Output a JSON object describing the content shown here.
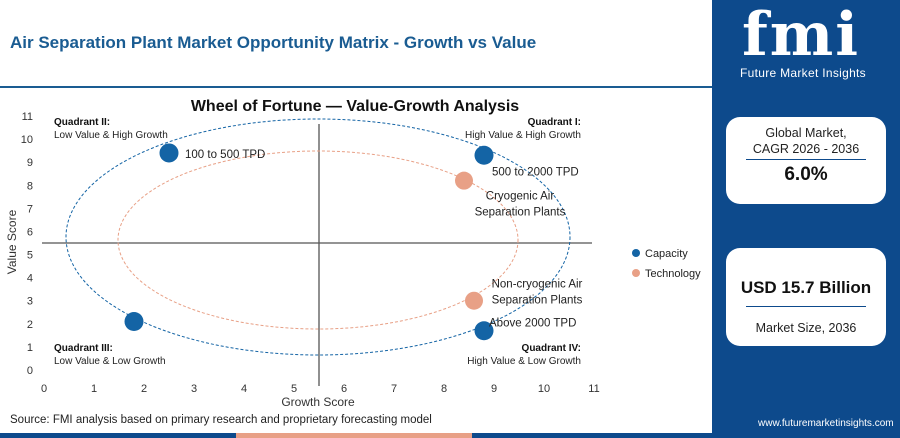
{
  "header": {
    "title": "Air Separation Plant Market Opportunity Matrix - Growth vs Value"
  },
  "brand": {
    "logo_text": "fmi",
    "tagline": "Future Market Insights",
    "website": "www.futuremarketinsights.com"
  },
  "stats": {
    "cagr_label_line1": "Global Market,",
    "cagr_label_line2": "CAGR 2026 - 2036",
    "cagr_value": "6.0%",
    "size_value": "USD 15.7 Billion",
    "size_label": "Market Size, 2036"
  },
  "source": "Source: FMI analysis based on primary research and proprietary forecasting model",
  "legend": {
    "items": [
      {
        "label": "Capacity",
        "color": "#1464a5"
      },
      {
        "label": "Technology",
        "color": "#e8a086"
      }
    ]
  },
  "quadrants": {
    "q1": {
      "title": "Quadrant I:",
      "subtitle": "High Value & High Growth"
    },
    "q2": {
      "title": "Quadrant II:",
      "subtitle": "Low Value & High Growth"
    },
    "q3": {
      "title": "Quadrant III:",
      "subtitle": "Low Value & Low Growth"
    },
    "q4": {
      "title": "Quadrant IV:",
      "subtitle": "High Value & Low Growth"
    }
  },
  "colors": {
    "brand_blue": "#0d4a8c",
    "capacity": "#1464a5",
    "technology": "#e8a086"
  },
  "chart_data": {
    "type": "scatter",
    "title": "Wheel of Fortune — Value-Growth Analysis",
    "xlabel": "Growth Score",
    "ylabel": "Value Score",
    "xlim": [
      0,
      11
    ],
    "ylim": [
      0,
      11
    ],
    "xticks": [
      "0",
      "1",
      "2",
      "3",
      "4",
      "5",
      "6",
      "7",
      "8",
      "9",
      "10",
      "11"
    ],
    "yticks": [
      "0",
      "1",
      "2",
      "3",
      "4",
      "5",
      "6",
      "7",
      "8",
      "9",
      "10",
      "11"
    ],
    "divider_x": 5.5,
    "divider_y": 5.5,
    "grid": false,
    "legend_position": "right",
    "series": [
      {
        "name": "Capacity",
        "color": "#1464a5",
        "points": [
          {
            "label": "100 to 500 TPD",
            "x": 2.5,
            "y": 9.4
          },
          {
            "label": "500 to 2000 TPD",
            "x": 8.8,
            "y": 9.3
          },
          {
            "label": "Above 2000 TPD",
            "x": 8.8,
            "y": 1.7
          },
          {
            "label": "",
            "x": 1.8,
            "y": 2.1
          }
        ]
      },
      {
        "name": "Technology",
        "color": "#e8a086",
        "points": [
          {
            "label": "Cryogenic Air Separation Plants",
            "x": 8.4,
            "y": 8.2
          },
          {
            "label": "Non-cryogenic Air Separation Plants",
            "x": 8.6,
            "y": 3.0
          }
        ]
      }
    ]
  }
}
